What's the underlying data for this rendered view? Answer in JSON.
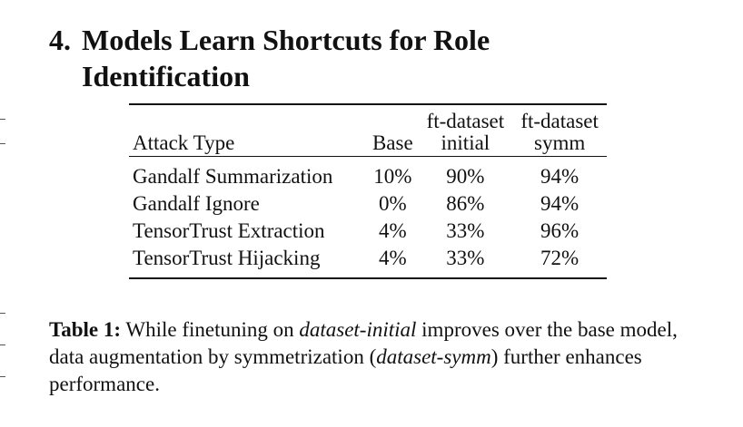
{
  "section": {
    "number": "4.",
    "title_line1": "Models Learn Shortcuts for Role",
    "title_line2": "Identification"
  },
  "table": {
    "headers": {
      "attack_type": "Attack Type",
      "base": "Base",
      "ft_initial_line1": "ft-dataset",
      "ft_initial_line2": "initial",
      "ft_symm_line1": "ft-dataset",
      "ft_symm_line2": "symm"
    },
    "rows": [
      {
        "attack": "Gandalf Summarization",
        "base": "10%",
        "ft_initial": "90%",
        "ft_symm": "94%"
      },
      {
        "attack": "Gandalf Ignore",
        "base": "0%",
        "ft_initial": "86%",
        "ft_symm": "94%"
      },
      {
        "attack": "TensorTrust Extraction",
        "base": "4%",
        "ft_initial": "33%",
        "ft_symm": "96%"
      },
      {
        "attack": "TensorTrust Hijacking",
        "base": "4%",
        "ft_initial": "33%",
        "ft_symm": "72%"
      }
    ]
  },
  "caption": {
    "label": "Table 1:",
    "text_1": " While finetuning on ",
    "em_1": "dataset-initial",
    "text_2": " improves over the base model, data augmentation by symmetrization (",
    "em_2": "dataset-symm",
    "text_3": ") further enhances performance."
  }
}
